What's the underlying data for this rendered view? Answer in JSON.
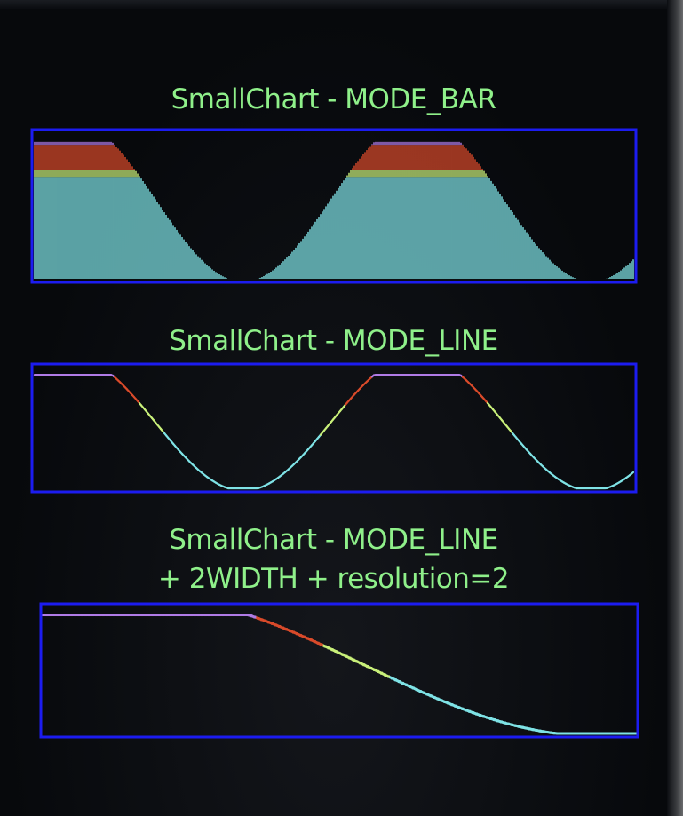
{
  "chart_data": [
    {
      "type": "bar",
      "title": "SmallChart - MODE_BAR",
      "xlim": [
        0,
        338
      ],
      "ylim": [
        0,
        1
      ],
      "clip_above": 0.96,
      "samples": 338,
      "x": [
        0,
        45,
        93,
        140,
        188,
        236,
        283,
        290,
        316,
        338
      ],
      "y": [
        0.96,
        0.96,
        0.48,
        0.0,
        0.48,
        0.96,
        0.48,
        0.38,
        0.0,
        0.18
      ],
      "color_bands": [
        {
          "from": 0.0,
          "to": 0.7,
          "color": "#7fe3e6"
        },
        {
          "from": 0.7,
          "to": 0.75,
          "color": "#c9f07a"
        },
        {
          "from": 0.75,
          "to": 0.92,
          "color": "#d94a2a"
        },
        {
          "from": 0.92,
          "to": 1.0,
          "color": "#b07be6"
        }
      ],
      "frame_color": "#1c1cf0"
    },
    {
      "type": "line",
      "title": "SmallChart - MODE_LINE",
      "xlim": [
        0,
        338
      ],
      "ylim": [
        0,
        1
      ],
      "clip_above": 0.96,
      "samples": 338,
      "color_bands": [
        {
          "from": 0.0,
          "to": 0.45,
          "color": "#7fe3e6"
        },
        {
          "from": 0.45,
          "to": 0.7,
          "color": "#c9f07a"
        },
        {
          "from": 0.7,
          "to": 0.92,
          "color": "#d94a2a"
        },
        {
          "from": 0.92,
          "to": 1.0,
          "color": "#b07be6"
        }
      ],
      "frame_color": "#1c1cf0"
    },
    {
      "type": "line",
      "title": "SmallChart - MODE_LINE",
      "subtitle": "+ 2WIDTH + resolution=2",
      "xlim": [
        0,
        169
      ],
      "ylim": [
        0,
        1
      ],
      "clip_above": 0.96,
      "samples": 169,
      "resolution": 2,
      "line_width": 2,
      "color_bands": [
        {
          "from": 0.0,
          "to": 0.45,
          "color": "#7fe3e6"
        },
        {
          "from": 0.45,
          "to": 0.7,
          "color": "#c9f07a"
        },
        {
          "from": 0.7,
          "to": 0.92,
          "color": "#d94a2a"
        },
        {
          "from": 0.92,
          "to": 1.0,
          "color": "#b07be6"
        }
      ],
      "frame_color": "#1c1cf0"
    }
  ]
}
